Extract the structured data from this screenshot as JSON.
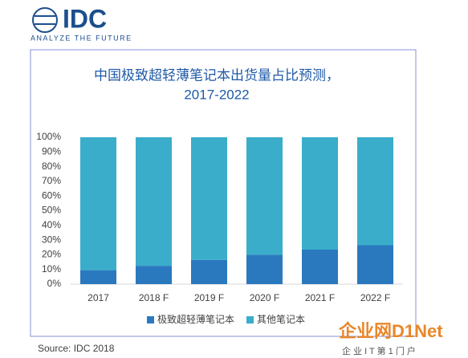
{
  "logo": {
    "name": "IDC",
    "tagline": "ANALYZE THE FUTURE"
  },
  "chart_data": {
    "type": "stacked_bar",
    "title": "中国极致超轻薄笔记本出货量占比预测，",
    "subtitle": "2017-2022",
    "categories": [
      "2017",
      "2018 F",
      "2019 F",
      "2020 F",
      "2021 F",
      "2022 F"
    ],
    "series": [
      {
        "name": "极致超轻薄笔记本",
        "color": "#2a79bf",
        "values": [
          9.5,
          12.5,
          16.5,
          20,
          23.5,
          26.5
        ]
      },
      {
        "name": "其他笔记本",
        "color": "#3aadca",
        "values": [
          90.5,
          87.5,
          83.5,
          80,
          76.5,
          73.5
        ]
      }
    ],
    "ylim": [
      0,
      100
    ],
    "yticks": [
      {
        "value": 0,
        "label": "0%"
      },
      {
        "value": 10,
        "label": "10%"
      },
      {
        "value": 20,
        "label": "20%"
      },
      {
        "value": 30,
        "label": "30%"
      },
      {
        "value": 40,
        "label": "40%"
      },
      {
        "value": 50,
        "label": "50%"
      },
      {
        "value": 60,
        "label": "60%"
      },
      {
        "value": 70,
        "label": "70%"
      },
      {
        "value": 80,
        "label": "80%"
      },
      {
        "value": 90,
        "label": "90%"
      },
      {
        "value": 100,
        "label": "100%"
      }
    ],
    "grid": false,
    "legend": "bottom"
  },
  "source": "Source: IDC 2018",
  "watermark": {
    "brand": "企业网D1Net",
    "slogan": "企 业 I T 第 1 门 户"
  }
}
